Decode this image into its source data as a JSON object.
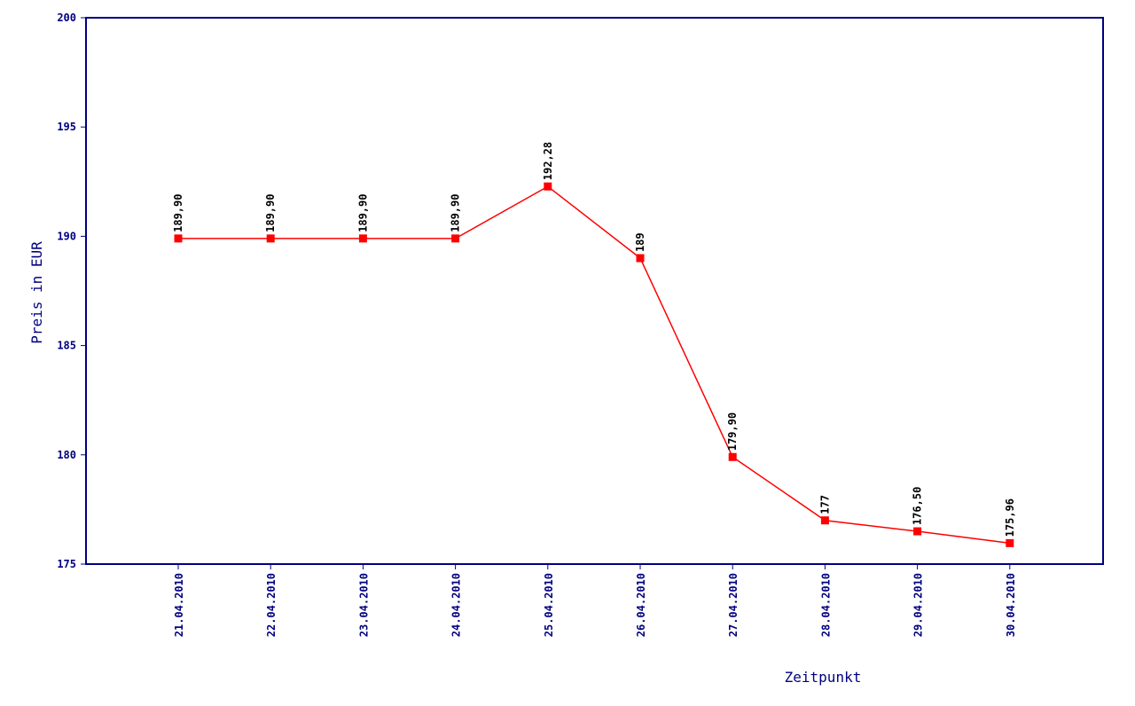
{
  "chart_data": {
    "type": "line",
    "xlabel": "Zeitpunkt",
    "ylabel": "Preis in EUR",
    "categories": [
      "21.04.2010",
      "22.04.2010",
      "23.04.2010",
      "24.04.2010",
      "25.04.2010",
      "26.04.2010",
      "27.04.2010",
      "28.04.2010",
      "29.04.2010",
      "30.04.2010"
    ],
    "series": [
      {
        "values": [
          189.9,
          189.9,
          189.9,
          189.9,
          192.28,
          189,
          179.9,
          177,
          176.5,
          175.96
        ],
        "labels": [
          "189,90",
          "189,90",
          "189,90",
          "189,90",
          "192,28",
          "189",
          "179,90",
          "177",
          "176,50",
          "175,96"
        ]
      }
    ],
    "ylim": [
      175,
      200
    ],
    "yticks": [
      "175",
      "180",
      "185",
      "190",
      "195",
      "200"
    ],
    "grid": false,
    "colors": {
      "axis": "#000080",
      "line": "#ff0000",
      "marker": "#ff0000",
      "data_label": "#000000"
    }
  }
}
